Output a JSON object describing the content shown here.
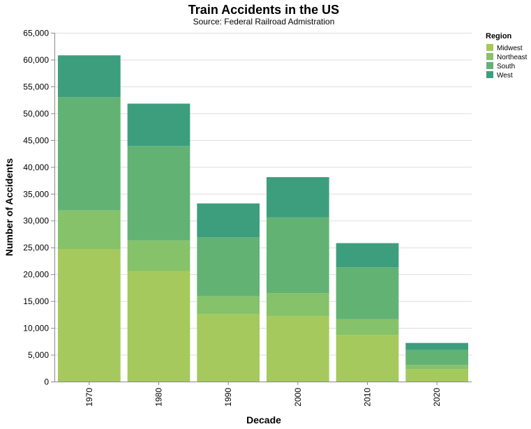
{
  "chart_data": {
    "type": "bar",
    "stacked": true,
    "title": "Train Accidents in the US",
    "subtitle": "Source: Federal Railroad Admistration",
    "xlabel": "Decade",
    "ylabel": "Number of Accidents",
    "categories": [
      "1970",
      "1980",
      "1990",
      "2000",
      "2010",
      "2020"
    ],
    "series": [
      {
        "name": "Midwest",
        "color": "#a5c95c",
        "values": [
          24700,
          20600,
          12600,
          12200,
          8700,
          2300
        ]
      },
      {
        "name": "Northeast",
        "color": "#85c26a",
        "values": [
          7200,
          5700,
          3300,
          4300,
          2900,
          800
        ]
      },
      {
        "name": "South",
        "color": "#62b274",
        "values": [
          21100,
          17600,
          11000,
          14100,
          9700,
          2800
        ]
      },
      {
        "name": "West",
        "color": "#3d9e7e",
        "values": [
          7800,
          7900,
          6300,
          7500,
          4500,
          1300
        ]
      }
    ],
    "ylim": [
      0,
      65000
    ],
    "yticks": [
      0,
      5000,
      10000,
      15000,
      20000,
      25000,
      30000,
      35000,
      40000,
      45000,
      50000,
      55000,
      60000,
      65000
    ],
    "ytick_labels": [
      "0",
      "5,000",
      "10,000",
      "15,000",
      "20,000",
      "25,000",
      "30,000",
      "35,000",
      "40,000",
      "45,000",
      "50,000",
      "55,000",
      "60,000",
      "65,000"
    ],
    "grid": true,
    "legend": {
      "title": "Region",
      "position": "right"
    }
  }
}
